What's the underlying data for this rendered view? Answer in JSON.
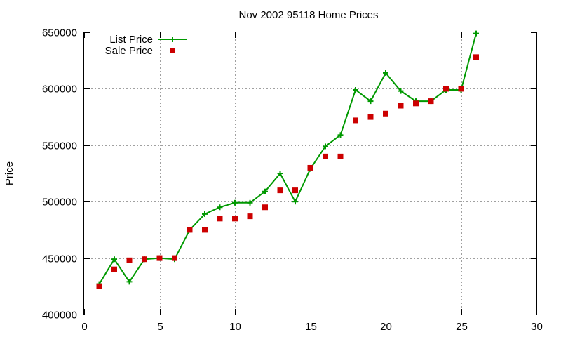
{
  "chart_data": {
    "type": "line",
    "title": "Nov 2002 95118 Home Prices",
    "xlabel": "",
    "ylabel": "Price",
    "xlim": [
      0,
      30
    ],
    "ylim": [
      400000,
      650000
    ],
    "xticks": [
      0,
      5,
      10,
      15,
      20,
      25,
      30
    ],
    "yticks": [
      400000,
      450000,
      500000,
      550000,
      600000,
      650000
    ],
    "grid": true,
    "legend_position": "top-left",
    "series": [
      {
        "name": "List Price",
        "style": "line+cross",
        "color": "#009900",
        "x": [
          1,
          2,
          3,
          4,
          5,
          6,
          7,
          8,
          9,
          10,
          11,
          12,
          13,
          14,
          15,
          16,
          17,
          18,
          19,
          20,
          21,
          22,
          23,
          24,
          25,
          26
        ],
        "y": [
          427000,
          449000,
          429000,
          449000,
          450000,
          449000,
          475000,
          489000,
          495000,
          499000,
          499000,
          509000,
          525000,
          500000,
          529000,
          549000,
          559000,
          599000,
          589000,
          614000,
          598000,
          589000,
          589000,
          599000,
          599000,
          649000
        ]
      },
      {
        "name": "Sale Price",
        "style": "square",
        "color": "#cc0000",
        "x": [
          1,
          2,
          3,
          4,
          5,
          6,
          7,
          8,
          9,
          10,
          11,
          12,
          13,
          14,
          15,
          16,
          17,
          18,
          19,
          20,
          21,
          22,
          23,
          24,
          25,
          26
        ],
        "y": [
          425000,
          440000,
          448000,
          449000,
          450000,
          450000,
          475000,
          475000,
          485000,
          485000,
          487000,
          495000,
          510000,
          510000,
          530000,
          540000,
          540000,
          572000,
          575000,
          578000,
          585000,
          587000,
          589000,
          600000,
          600000,
          628000
        ]
      }
    ]
  }
}
